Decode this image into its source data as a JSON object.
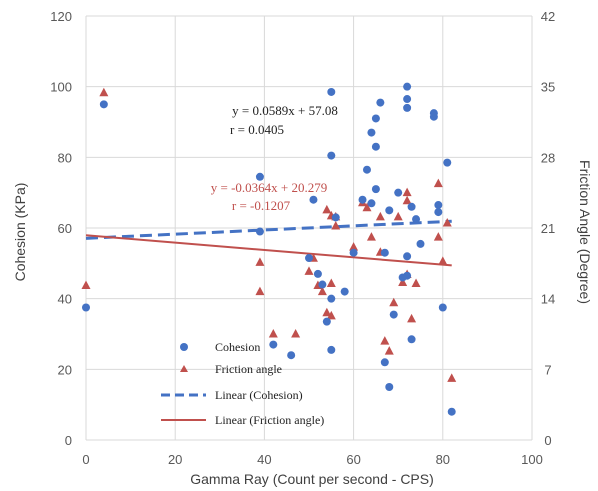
{
  "chart_data": {
    "type": "scatter",
    "xlabel": "Gamma Ray (Count per second - CPS)",
    "ylabel": "Cohesion (KPa)",
    "y2label": "Friction Angle (Degree)",
    "xlim": [
      0,
      100
    ],
    "ylim": [
      0,
      120
    ],
    "y2lim": [
      0,
      42
    ],
    "x_ticks": [
      "0",
      "20",
      "40",
      "60",
      "80",
      "100"
    ],
    "y_ticks": [
      "0",
      "20",
      "40",
      "60",
      "80",
      "100",
      "120"
    ],
    "y2_ticks": [
      "0",
      "7",
      "14",
      "21",
      "28",
      "35",
      "42"
    ],
    "grid": true,
    "legend_position": "bottom-left inside",
    "colors": {
      "cohesion": "#4472C4",
      "friction": "#C0504D"
    },
    "series": [
      {
        "name": "Cohesion",
        "marker": "circle",
        "axis": "left",
        "points": [
          [
            0,
            37.5
          ],
          [
            4,
            95
          ],
          [
            39,
            74.5
          ],
          [
            39,
            59
          ],
          [
            42,
            27
          ],
          [
            46,
            24
          ],
          [
            50,
            51.5
          ],
          [
            51,
            68
          ],
          [
            52,
            47
          ],
          [
            53,
            44
          ],
          [
            54,
            33.5
          ],
          [
            55,
            98.5
          ],
          [
            55,
            80.5
          ],
          [
            55,
            40
          ],
          [
            55,
            25.5
          ],
          [
            56,
            63
          ],
          [
            58,
            42
          ],
          [
            60,
            53
          ],
          [
            62,
            68
          ],
          [
            63,
            76.5
          ],
          [
            64,
            87
          ],
          [
            64,
            67
          ],
          [
            65,
            91
          ],
          [
            65,
            83
          ],
          [
            65,
            71
          ],
          [
            66,
            95.5
          ],
          [
            67,
            53
          ],
          [
            67,
            22
          ],
          [
            68,
            65
          ],
          [
            68,
            15
          ],
          [
            69,
            35.5
          ],
          [
            70,
            70
          ],
          [
            71,
            46
          ],
          [
            72,
            100
          ],
          [
            72,
            96.5
          ],
          [
            72,
            94
          ],
          [
            72,
            52
          ],
          [
            72,
            46.5
          ],
          [
            73,
            66
          ],
          [
            73,
            28.5
          ],
          [
            74,
            62.5
          ],
          [
            75,
            55.5
          ],
          [
            78,
            92.5
          ],
          [
            78,
            91.5
          ],
          [
            79,
            66.5
          ],
          [
            79,
            64.5
          ],
          [
            80,
            37.5
          ],
          [
            81,
            78.5
          ],
          [
            82,
            8
          ]
        ]
      },
      {
        "name": "Friction angle",
        "marker": "triangle",
        "axis": "right",
        "points": [
          [
            0,
            15.3
          ],
          [
            4,
            34.4
          ],
          [
            39,
            17.6
          ],
          [
            39,
            14.7
          ],
          [
            42,
            10.5
          ],
          [
            47,
            10.5
          ],
          [
            50,
            16.7
          ],
          [
            51,
            18.0
          ],
          [
            52,
            15.3
          ],
          [
            53,
            14.7
          ],
          [
            54,
            12.6
          ],
          [
            54,
            22.8
          ],
          [
            55,
            22.2
          ],
          [
            55,
            15.5
          ],
          [
            55,
            12.3
          ],
          [
            56,
            21.2
          ],
          [
            56,
            22.1
          ],
          [
            60,
            19.1
          ],
          [
            62,
            23.5
          ],
          [
            63,
            23.0
          ],
          [
            64,
            20.1
          ],
          [
            66,
            22.1
          ],
          [
            66,
            18.6
          ],
          [
            67,
            9.8
          ],
          [
            68,
            8.8
          ],
          [
            69,
            13.6
          ],
          [
            70,
            22.1
          ],
          [
            71,
            15.6
          ],
          [
            72,
            24.5
          ],
          [
            72,
            23.7
          ],
          [
            72,
            16.4
          ],
          [
            73,
            12.0
          ],
          [
            74,
            15.5
          ],
          [
            79,
            25.4
          ],
          [
            79,
            20.1
          ],
          [
            80,
            17.7
          ],
          [
            81,
            21.5
          ],
          [
            82,
            6.1
          ]
        ]
      }
    ],
    "trendlines": [
      {
        "name": "Linear (Cohesion)",
        "series": "Cohesion",
        "slope": 0.0589,
        "intercept": 57.08,
        "x_range": [
          0,
          82
        ],
        "style": "dashed",
        "equation": "y = 0.0589x + 57.08",
        "r_label": "r = 0.0405"
      },
      {
        "name": "Linear (Friction angle)",
        "series": "Friction angle",
        "slope": -0.0364,
        "intercept": 20.279,
        "x_range": [
          0,
          82
        ],
        "style": "solid",
        "equation": "y = -0.0364x + 20.279",
        "r_label": "r = -0.1207"
      }
    ],
    "legend": [
      {
        "label": "Cohesion",
        "kind": "circle",
        "color": "#4472C4"
      },
      {
        "label": "Friction angle",
        "kind": "triangle",
        "color": "#C0504D"
      },
      {
        "label": "Linear (Cohesion)",
        "kind": "dashed-line",
        "color": "#4472C4"
      },
      {
        "label": "Linear (Friction angle)",
        "kind": "solid-line",
        "color": "#C0504D"
      }
    ]
  }
}
